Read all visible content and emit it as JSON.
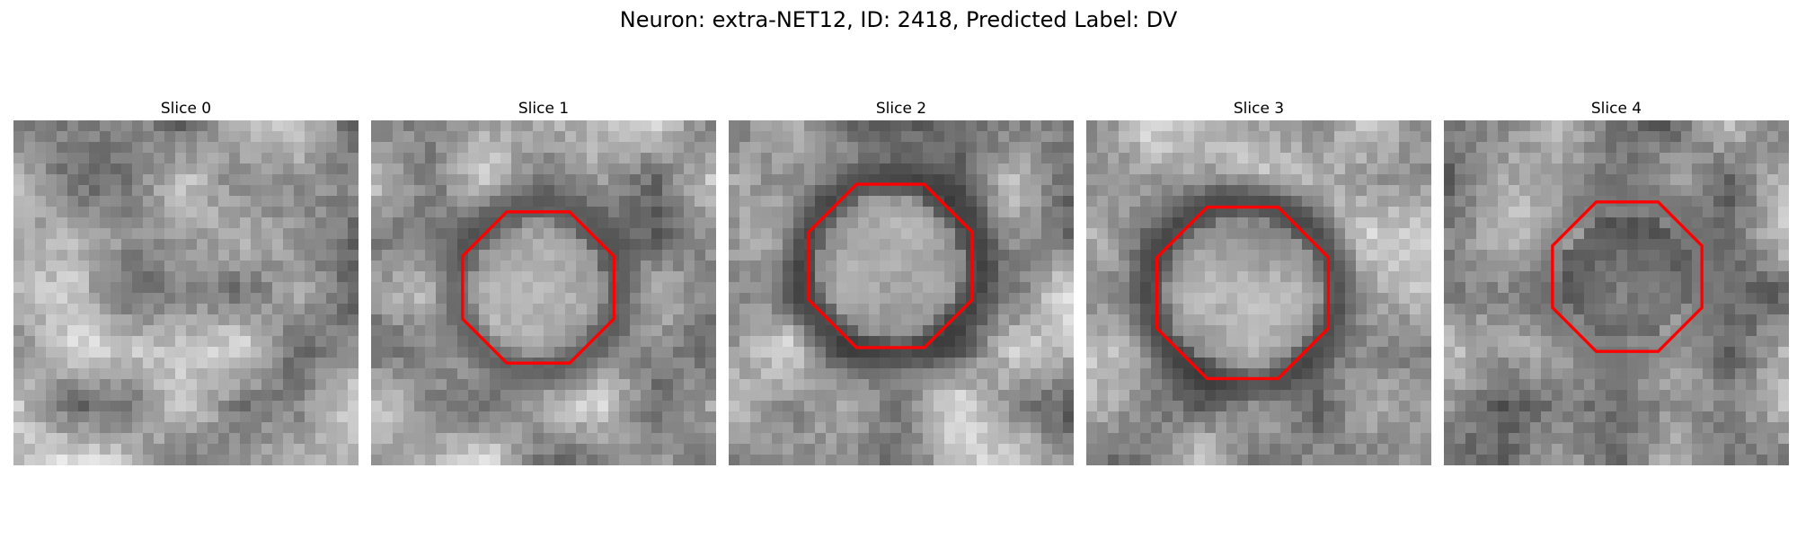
{
  "figure": {
    "title": "Neuron: extra-NET12, ID: 2418, Predicted Label: DV"
  },
  "slices": [
    {
      "title": "Slice 0",
      "seed": 11,
      "roi": null
    },
    {
      "title": "Slice 1",
      "seed": 23,
      "roi": {
        "cx": 15.5,
        "cy": 15.5,
        "r": 7.6,
        "ringShade": 70,
        "innerShade": 170
      }
    },
    {
      "title": "Slice 2",
      "seed": 37,
      "roi": {
        "cx": 15.0,
        "cy": 13.5,
        "r": 8.2,
        "ringShade": 40,
        "innerShade": 165
      }
    },
    {
      "title": "Slice 3",
      "seed": 51,
      "roi": {
        "cx": 14.5,
        "cy": 16.0,
        "r": 8.6,
        "ringShade": 45,
        "innerShade": 160
      }
    },
    {
      "title": "Slice 4",
      "seed": 67,
      "roi": {
        "cx": 17.0,
        "cy": 14.5,
        "r": 7.5,
        "ringShade": 110,
        "innerShade": 55
      }
    }
  ],
  "style": {
    "roi_color": "#ff0000",
    "colormap": "gray"
  }
}
